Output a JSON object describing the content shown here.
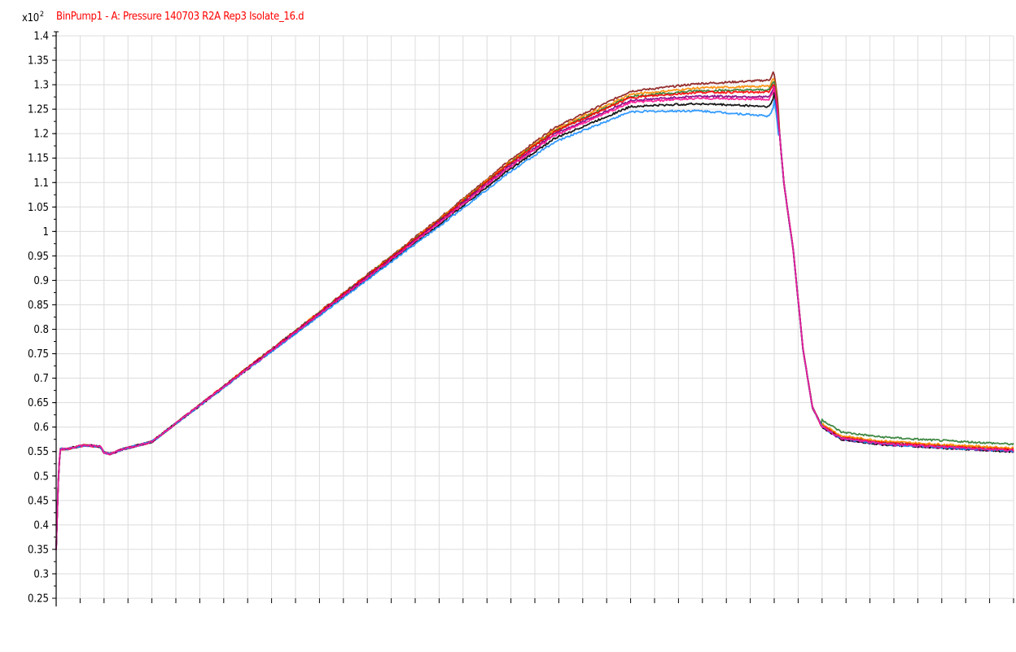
{
  "chart_data": {
    "type": "line",
    "title": "BinPump1 - A: Pressure 140703 R2A Rep3 Isolate_16.d",
    "y_scale_prefix": "x10",
    "y_scale_exponent": "2",
    "xlabel": "",
    "ylabel": "",
    "ylim": [
      0.25,
      1.4
    ],
    "xlim": [
      0,
      1
    ],
    "yticks": [
      "1.4",
      "1.35",
      "1.3",
      "1.25",
      "1.2",
      "1.15",
      "1.1",
      "1.05",
      "1",
      "0.95",
      "0.9",
      "0.85",
      "0.8",
      "0.75",
      "0.7",
      "0.65",
      "0.6",
      "0.55",
      "0.5",
      "0.45",
      "0.4",
      "0.35",
      "0.3",
      "0.25"
    ],
    "grid": true,
    "x_grid_lines": 40,
    "series": [
      {
        "color": "#8b1a1a",
        "plateau": 1.3,
        "shift": 0.004,
        "tail": 0.555
      },
      {
        "color": "#ff8c00",
        "plateau": 1.29,
        "shift": 0.003,
        "tail": 0.557
      },
      {
        "color": "#2e7d32",
        "plateau": 1.285,
        "shift": 0.002,
        "tail": 0.565
      },
      {
        "color": "#ff0000",
        "plateau": 1.28,
        "shift": 0.002,
        "tail": 0.553
      },
      {
        "color": "#800080",
        "plateau": 1.275,
        "shift": 0.0,
        "tail": 0.55
      },
      {
        "color": "#000000",
        "plateau": 1.265,
        "shift": -0.004,
        "tail": 0.55
      },
      {
        "color": "#1e90ff",
        "plateau": 1.25,
        "shift": -0.006,
        "tail": 0.551
      },
      {
        "color": "#ff1493",
        "plateau": 1.275,
        "shift": -0.002,
        "tail": 0.552
      }
    ],
    "profile": {
      "x": [
        0,
        0.002,
        0.004,
        0.01,
        0.03,
        0.046,
        0.05,
        0.056,
        0.07,
        0.1,
        0.2,
        0.3,
        0.4,
        0.47,
        0.52,
        0.6,
        0.67,
        0.72,
        0.745,
        0.75,
        0.753,
        0.76,
        0.77,
        0.78,
        0.79,
        0.8,
        0.82,
        0.86,
        0.9,
        0.95,
        1.0
      ],
      "y": [
        0.35,
        0.48,
        0.555,
        0.555,
        0.563,
        0.56,
        0.548,
        0.545,
        0.555,
        0.57,
        0.72,
        0.87,
        1.02,
        1.13,
        1.2,
        1.27,
        1.28,
        1.28,
        1.28,
        1.3,
        1.26,
        1.1,
        0.96,
        0.76,
        0.64,
        0.6,
        0.575,
        0.565,
        0.56,
        0.555,
        0.55
      ]
    }
  }
}
